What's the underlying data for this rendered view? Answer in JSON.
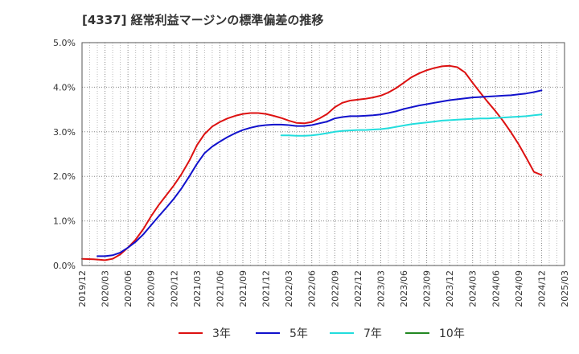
{
  "chart_data": {
    "type": "line",
    "title": "[4337]  経常利益マージンの標準偏差の推移",
    "xlabel": "",
    "ylabel": "",
    "x_ticks": [
      "2019/12",
      "2020/03",
      "2020/06",
      "2020/09",
      "2020/12",
      "2021/03",
      "2021/06",
      "2021/09",
      "2021/12",
      "2022/03",
      "2022/06",
      "2022/09",
      "2022/12",
      "2023/03",
      "2023/06",
      "2023/09",
      "2023/12",
      "2024/03",
      "2024/06",
      "2024/09",
      "2024/12",
      "2025/03"
    ],
    "y_ticks": [
      "0.0%",
      "1.0%",
      "2.0%",
      "3.0%",
      "4.0%",
      "5.0%"
    ],
    "ylim": [
      0,
      5
    ],
    "grid": true,
    "legend_position": "bottom",
    "series": [
      {
        "name": "3年",
        "color": "#dd1111",
        "points": [
          [
            0,
            0.15
          ],
          [
            0.5,
            0.14
          ],
          [
            1,
            0.12
          ],
          [
            1.33,
            0.15
          ],
          [
            1.67,
            0.25
          ],
          [
            2,
            0.4
          ],
          [
            2.33,
            0.58
          ],
          [
            2.67,
            0.82
          ],
          [
            3,
            1.1
          ],
          [
            3.33,
            1.35
          ],
          [
            3.67,
            1.58
          ],
          [
            4,
            1.8
          ],
          [
            4.33,
            2.05
          ],
          [
            4.67,
            2.35
          ],
          [
            5,
            2.7
          ],
          [
            5.33,
            2.95
          ],
          [
            5.67,
            3.12
          ],
          [
            6,
            3.22
          ],
          [
            6.33,
            3.3
          ],
          [
            6.67,
            3.36
          ],
          [
            7,
            3.4
          ],
          [
            7.33,
            3.42
          ],
          [
            7.67,
            3.42
          ],
          [
            8,
            3.4
          ],
          [
            8.33,
            3.36
          ],
          [
            8.67,
            3.31
          ],
          [
            9,
            3.25
          ],
          [
            9.33,
            3.2
          ],
          [
            9.67,
            3.19
          ],
          [
            10,
            3.22
          ],
          [
            10.33,
            3.3
          ],
          [
            10.67,
            3.4
          ],
          [
            11,
            3.55
          ],
          [
            11.33,
            3.65
          ],
          [
            11.67,
            3.7
          ],
          [
            12,
            3.72
          ],
          [
            12.33,
            3.74
          ],
          [
            12.67,
            3.77
          ],
          [
            13,
            3.81
          ],
          [
            13.33,
            3.88
          ],
          [
            13.67,
            3.98
          ],
          [
            14,
            4.1
          ],
          [
            14.33,
            4.22
          ],
          [
            14.67,
            4.31
          ],
          [
            15,
            4.38
          ],
          [
            15.33,
            4.43
          ],
          [
            15.67,
            4.47
          ],
          [
            16,
            4.48
          ],
          [
            16.33,
            4.45
          ],
          [
            16.67,
            4.33
          ],
          [
            17,
            4.1
          ],
          [
            17.33,
            3.88
          ],
          [
            17.67,
            3.66
          ],
          [
            18,
            3.46
          ],
          [
            18.33,
            3.24
          ],
          [
            18.67,
            2.99
          ],
          [
            19,
            2.72
          ],
          [
            19.33,
            2.42
          ],
          [
            19.67,
            2.1
          ],
          [
            20,
            2.03
          ]
        ]
      },
      {
        "name": "5年",
        "color": "#1111cc",
        "points": [
          [
            0.67,
            0.21
          ],
          [
            1,
            0.21
          ],
          [
            1.33,
            0.23
          ],
          [
            1.67,
            0.29
          ],
          [
            2,
            0.4
          ],
          [
            2.33,
            0.53
          ],
          [
            2.67,
            0.7
          ],
          [
            3,
            0.9
          ],
          [
            3.33,
            1.1
          ],
          [
            3.67,
            1.3
          ],
          [
            4,
            1.5
          ],
          [
            4.33,
            1.73
          ],
          [
            4.67,
            2.0
          ],
          [
            5,
            2.28
          ],
          [
            5.33,
            2.52
          ],
          [
            5.67,
            2.67
          ],
          [
            6,
            2.78
          ],
          [
            6.33,
            2.88
          ],
          [
            6.67,
            2.97
          ],
          [
            7,
            3.04
          ],
          [
            7.33,
            3.09
          ],
          [
            7.67,
            3.13
          ],
          [
            8,
            3.15
          ],
          [
            8.33,
            3.16
          ],
          [
            8.67,
            3.16
          ],
          [
            9,
            3.15
          ],
          [
            9.33,
            3.13
          ],
          [
            9.67,
            3.13
          ],
          [
            10,
            3.15
          ],
          [
            10.33,
            3.19
          ],
          [
            10.67,
            3.23
          ],
          [
            11,
            3.3
          ],
          [
            11.33,
            3.33
          ],
          [
            11.67,
            3.35
          ],
          [
            12,
            3.35
          ],
          [
            12.33,
            3.36
          ],
          [
            12.67,
            3.37
          ],
          [
            13,
            3.39
          ],
          [
            13.33,
            3.42
          ],
          [
            13.67,
            3.46
          ],
          [
            14,
            3.51
          ],
          [
            14.33,
            3.55
          ],
          [
            14.67,
            3.59
          ],
          [
            15,
            3.62
          ],
          [
            15.33,
            3.65
          ],
          [
            15.67,
            3.68
          ],
          [
            16,
            3.71
          ],
          [
            16.33,
            3.73
          ],
          [
            16.67,
            3.75
          ],
          [
            17,
            3.77
          ],
          [
            17.33,
            3.78
          ],
          [
            17.67,
            3.79
          ],
          [
            18,
            3.8
          ],
          [
            18.33,
            3.81
          ],
          [
            18.67,
            3.82
          ],
          [
            19,
            3.84
          ],
          [
            19.33,
            3.86
          ],
          [
            19.67,
            3.89
          ],
          [
            20,
            3.93
          ]
        ]
      },
      {
        "name": "7年",
        "color": "#22dddd",
        "points": [
          [
            8.67,
            2.92
          ],
          [
            9,
            2.92
          ],
          [
            9.33,
            2.91
          ],
          [
            9.67,
            2.91
          ],
          [
            10,
            2.92
          ],
          [
            10.33,
            2.94
          ],
          [
            10.67,
            2.97
          ],
          [
            11,
            3.0
          ],
          [
            11.33,
            3.02
          ],
          [
            11.67,
            3.03
          ],
          [
            12,
            3.04
          ],
          [
            12.33,
            3.04
          ],
          [
            12.67,
            3.05
          ],
          [
            13,
            3.06
          ],
          [
            13.33,
            3.08
          ],
          [
            13.67,
            3.11
          ],
          [
            14,
            3.14
          ],
          [
            14.33,
            3.17
          ],
          [
            14.67,
            3.19
          ],
          [
            15,
            3.21
          ],
          [
            15.33,
            3.23
          ],
          [
            15.67,
            3.25
          ],
          [
            16,
            3.26
          ],
          [
            16.33,
            3.27
          ],
          [
            16.67,
            3.28
          ],
          [
            17,
            3.29
          ],
          [
            17.33,
            3.3
          ],
          [
            17.67,
            3.3
          ],
          [
            18,
            3.31
          ],
          [
            18.33,
            3.32
          ],
          [
            18.67,
            3.33
          ],
          [
            19,
            3.34
          ],
          [
            19.33,
            3.35
          ],
          [
            19.67,
            3.37
          ],
          [
            20,
            3.39
          ]
        ]
      },
      {
        "name": "10年",
        "color": "#228822",
        "points": []
      }
    ]
  }
}
